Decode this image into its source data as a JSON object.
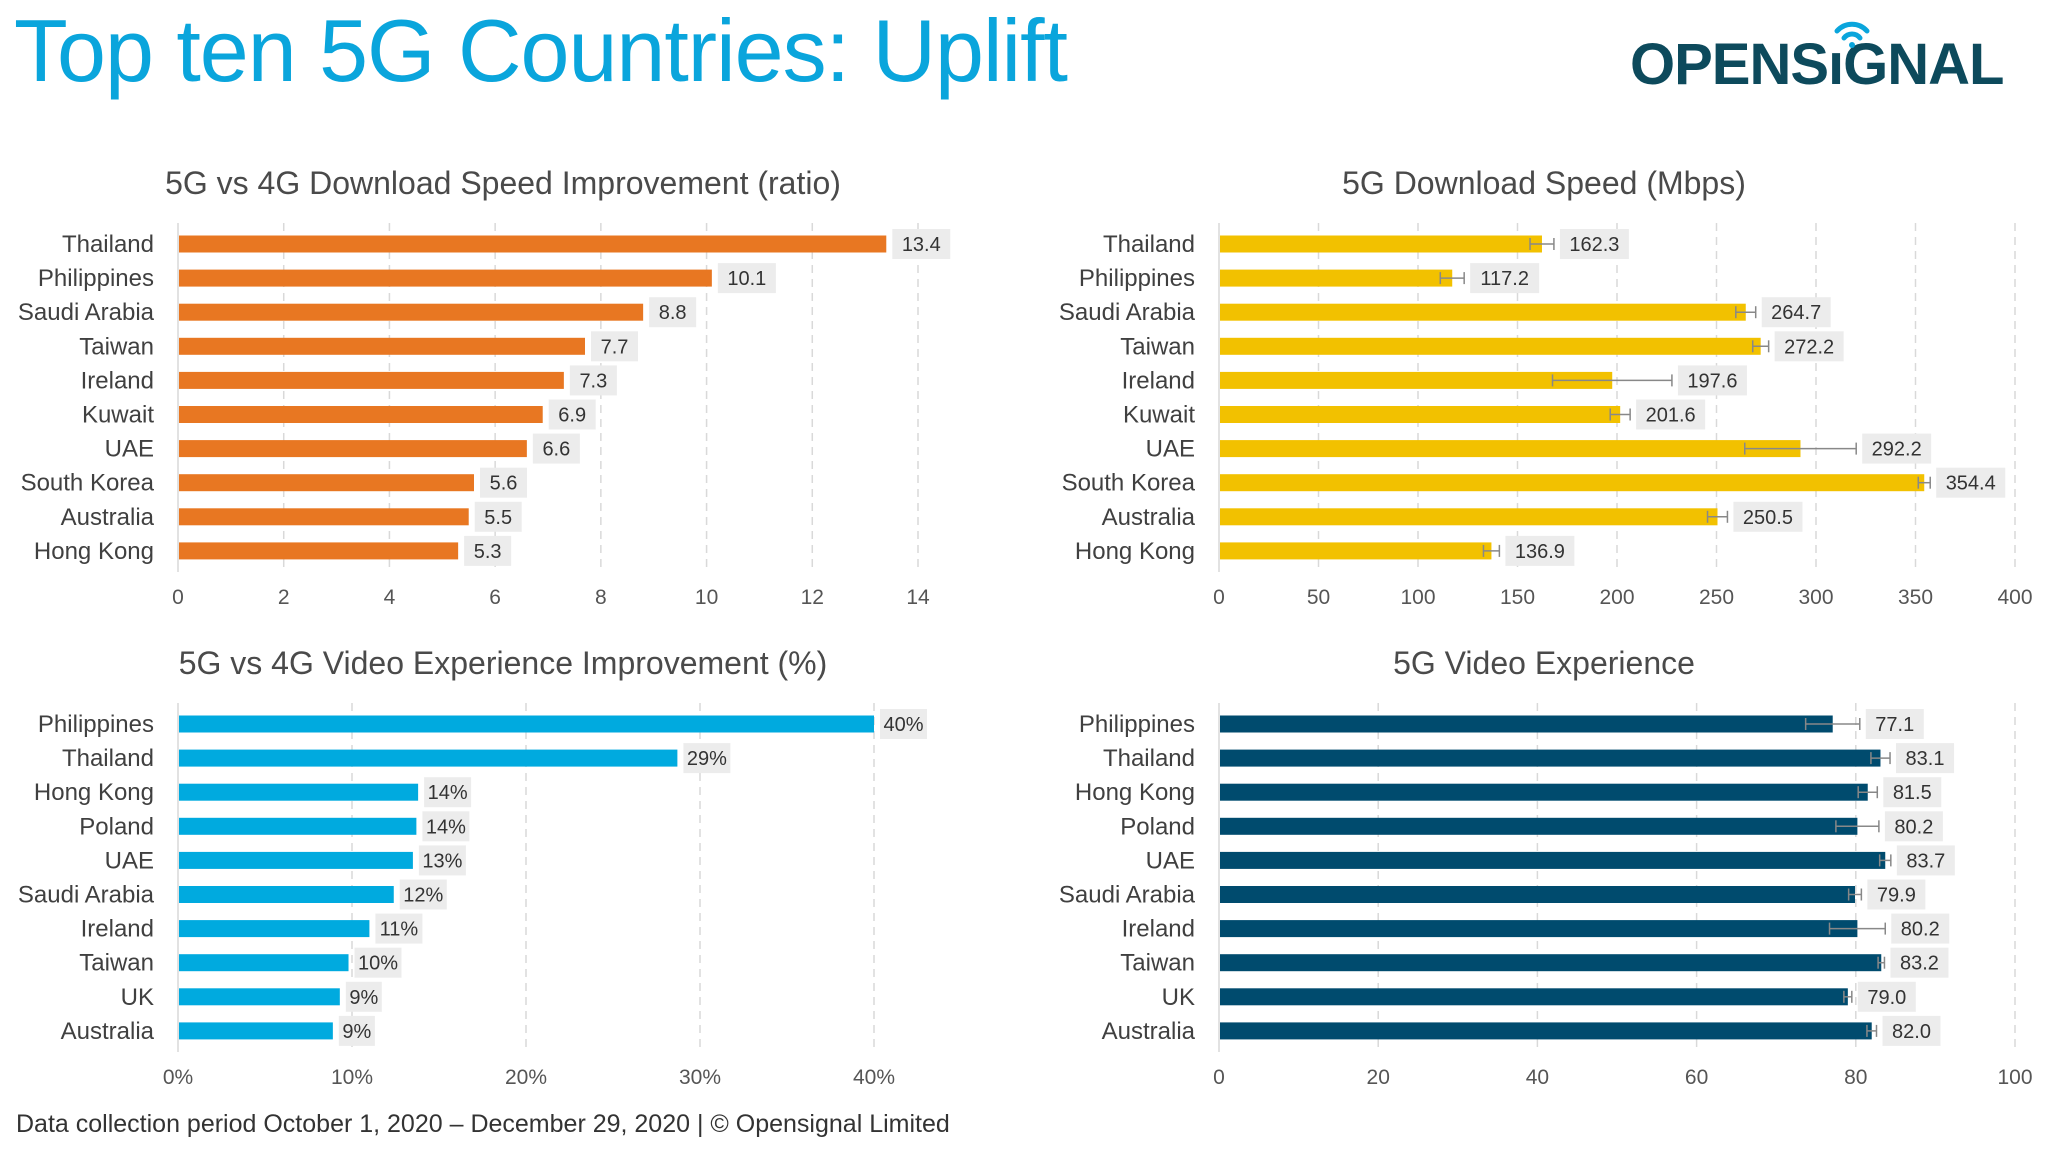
{
  "header": {
    "title": "Top ten 5G Countries: Uplift",
    "logo_text": "OPENSIGNAL"
  },
  "footer": {
    "text": "Data collection period October 1, 2020 – December 29, 2020  |  © Opensignal Limited"
  },
  "colors": {
    "title": "#0aa5dc",
    "logo": "#0d4a5c",
    "download_ratio": "#e87722",
    "download_speed": "#f2c100",
    "video_improvement": "#00aadf",
    "video_experience": "#004b6e",
    "label_box": "#ececec"
  },
  "chart_data": [
    {
      "type": "bar",
      "orientation": "horizontal",
      "title": "5G vs 4G Download Speed Improvement (ratio)",
      "categories": [
        "Thailand",
        "Philippines",
        "Saudi Arabia",
        "Taiwan",
        "Ireland",
        "Kuwait",
        "UAE",
        "South Korea",
        "Australia",
        "Hong Kong"
      ],
      "values": [
        13.4,
        10.1,
        8.8,
        7.7,
        7.3,
        6.9,
        6.6,
        5.6,
        5.5,
        5.3
      ],
      "labels": [
        "13.4",
        "10.1",
        "8.8",
        "7.7",
        "7.3",
        "6.9",
        "6.6",
        "5.6",
        "5.5",
        "5.3"
      ],
      "xlim": [
        0,
        14
      ],
      "ticks": [
        0,
        2,
        4,
        6,
        8,
        10,
        12,
        14
      ],
      "tick_labels": [
        "0",
        "2",
        "4",
        "6",
        "8",
        "10",
        "12",
        "14"
      ],
      "grid": true,
      "color": "#e87722"
    },
    {
      "type": "bar",
      "orientation": "horizontal",
      "title": "5G Download Speed (Mbps)",
      "categories": [
        "Thailand",
        "Philippines",
        "Saudi Arabia",
        "Taiwan",
        "Ireland",
        "Kuwait",
        "UAE",
        "South Korea",
        "Australia",
        "Hong Kong"
      ],
      "values": [
        162.3,
        117.2,
        264.7,
        272.2,
        197.6,
        201.6,
        292.2,
        354.4,
        250.5,
        136.9
      ],
      "errors": [
        6,
        6,
        5,
        4,
        30,
        5,
        28,
        3,
        5,
        4
      ],
      "labels": [
        "162.3",
        "117.2",
        "264.7",
        "272.2",
        "197.6",
        "201.6",
        "292.2",
        "354.4",
        "250.5",
        "136.9"
      ],
      "xlim": [
        0,
        400
      ],
      "ticks": [
        0,
        50,
        100,
        150,
        200,
        250,
        300,
        350,
        400
      ],
      "tick_labels": [
        "0",
        "50",
        "100",
        "150",
        "200",
        "250",
        "300",
        "350",
        "400"
      ],
      "grid": true,
      "color": "#f2c100"
    },
    {
      "type": "bar",
      "orientation": "horizontal",
      "title": "5G vs 4G Video Experience Improvement (%)",
      "categories": [
        "Philippines",
        "Thailand",
        "Hong Kong",
        "Poland",
        "UAE",
        "Saudi Arabia",
        "Ireland",
        "Taiwan",
        "UK",
        "Australia"
      ],
      "values": [
        40,
        28.7,
        13.8,
        13.7,
        13.5,
        12.4,
        11,
        9.8,
        9.3,
        8.9
      ],
      "labels": [
        "40%",
        "29%",
        "14%",
        "14%",
        "13%",
        "12%",
        "11%",
        "10%",
        "9%",
        "9%"
      ],
      "xlim": [
        0,
        40
      ],
      "ticks": [
        0,
        10,
        20,
        30,
        40
      ],
      "tick_labels": [
        "0%",
        "10%",
        "20%",
        "30%",
        "40%"
      ],
      "grid": true,
      "color": "#00aadf"
    },
    {
      "type": "bar",
      "orientation": "horizontal",
      "title": "5G Video Experience",
      "categories": [
        "Philippines",
        "Thailand",
        "Hong Kong",
        "Poland",
        "UAE",
        "Saudi Arabia",
        "Ireland",
        "Taiwan",
        "UK",
        "Australia"
      ],
      "values": [
        77.1,
        83.1,
        81.5,
        80.2,
        83.7,
        79.9,
        80.2,
        83.2,
        79.0,
        82.0
      ],
      "errors": [
        3.4,
        1.2,
        1.2,
        2.7,
        0.7,
        0.8,
        3.5,
        0.4,
        0.5,
        0.6
      ],
      "labels": [
        "77.1",
        "83.1",
        "81.5",
        "80.2",
        "83.7",
        "79.9",
        "80.2",
        "83.2",
        "79.0",
        "82.0"
      ],
      "xlim": [
        0,
        100
      ],
      "ticks": [
        0,
        20,
        40,
        60,
        80,
        100
      ],
      "tick_labels": [
        "0",
        "20",
        "40",
        "60",
        "80",
        "100"
      ],
      "grid": true,
      "color": "#004b6e"
    }
  ]
}
